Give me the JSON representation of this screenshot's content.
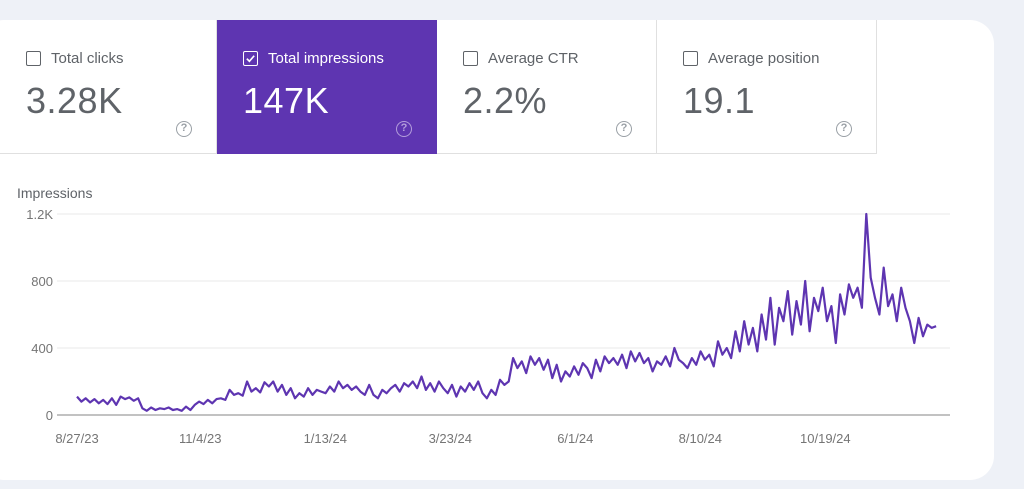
{
  "metrics": [
    {
      "label": "Total clicks",
      "value": "3.28K",
      "checked": false,
      "help": "?"
    },
    {
      "label": "Total impressions",
      "value": "147K",
      "checked": true,
      "help": "?"
    },
    {
      "label": "Average CTR",
      "value": "2.2%",
      "checked": false,
      "help": "?"
    },
    {
      "label": "Average position",
      "value": "19.1",
      "checked": false,
      "help": "?"
    }
  ],
  "colors": {
    "accent": "#5e35b1",
    "line": "#5e35b1",
    "grid": "#e8e8e8",
    "axis": "#9e9e9e"
  },
  "chart_data": {
    "type": "line",
    "title": "",
    "ylabel": "Impressions",
    "xlabel": "",
    "ylim": [
      0,
      1200
    ],
    "yticks": [
      0,
      400,
      800,
      1200
    ],
    "ytick_labels": [
      "0",
      "400",
      "800",
      "1.2K"
    ],
    "xtick_labels": [
      "8/27/23",
      "11/4/23",
      "1/13/24",
      "3/23/24",
      "6/1/24",
      "8/10/24",
      "10/19/24"
    ],
    "xtick_days": [
      0,
      69,
      139,
      209,
      279,
      349,
      419
    ],
    "x_start": "8/27/23",
    "x_days_total": 481,
    "grid": true,
    "legend": "none",
    "series": [
      {
        "name": "Impressions",
        "sample_interval_days": 3,
        "values": [
          110,
          80,
          100,
          75,
          95,
          70,
          90,
          65,
          100,
          60,
          110,
          95,
          105,
          85,
          100,
          40,
          25,
          45,
          30,
          40,
          35,
          45,
          30,
          35,
          25,
          50,
          30,
          60,
          80,
          65,
          90,
          70,
          95,
          100,
          90,
          150,
          120,
          130,
          115,
          200,
          140,
          160,
          135,
          195,
          170,
          200,
          140,
          180,
          120,
          160,
          100,
          130,
          110,
          160,
          120,
          150,
          140,
          130,
          170,
          140,
          200,
          160,
          180,
          150,
          170,
          140,
          120,
          180,
          120,
          100,
          150,
          130,
          160,
          180,
          140,
          190,
          170,
          200,
          160,
          230,
          150,
          190,
          140,
          200,
          160,
          130,
          180,
          110,
          170,
          140,
          190,
          150,
          200,
          130,
          100,
          150,
          120,
          210,
          180,
          200,
          340,
          280,
          320,
          250,
          350,
          300,
          340,
          270,
          330,
          220,
          300,
          200,
          260,
          230,
          290,
          240,
          310,
          280,
          220,
          330,
          260,
          350,
          310,
          340,
          300,
          360,
          280,
          380,
          320,
          370,
          310,
          340,
          260,
          320,
          300,
          350,
          290,
          400,
          330,
          310,
          280,
          340,
          300,
          380,
          330,
          360,
          290,
          440,
          360,
          400,
          340,
          500,
          380,
          560,
          420,
          520,
          380,
          600,
          450,
          700,
          420,
          640,
          560,
          740,
          480,
          680,
          540,
          800,
          500,
          700,
          620,
          760,
          560,
          650,
          430,
          720,
          600,
          780,
          700,
          760,
          640,
          1200,
          820,
          700,
          600,
          880,
          650,
          720,
          560,
          760,
          640,
          560,
          430,
          580,
          470,
          540,
          520,
          530
        ]
      }
    ]
  }
}
